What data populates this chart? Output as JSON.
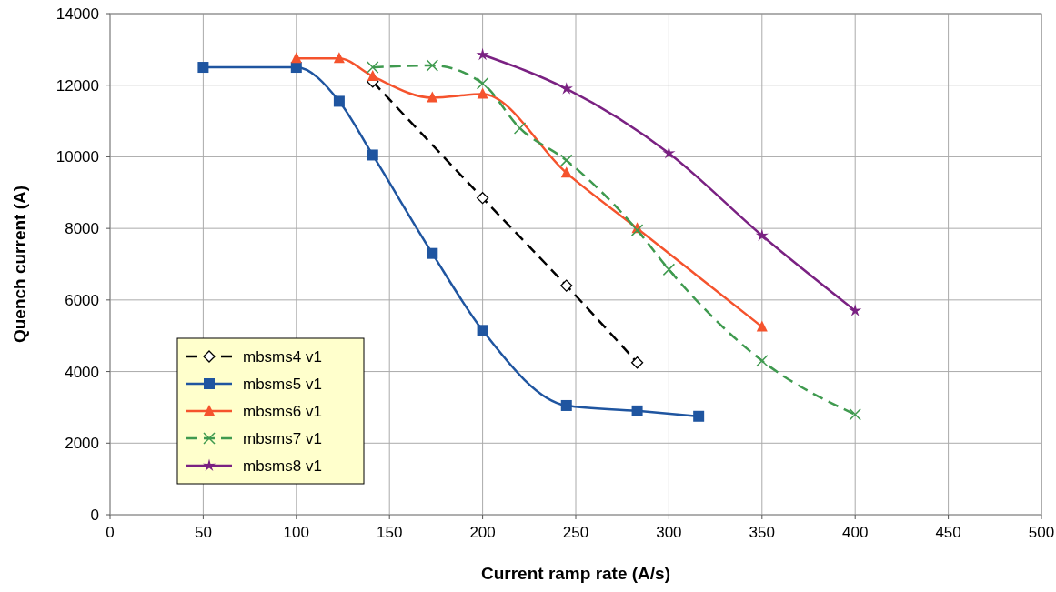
{
  "chart_data": {
    "type": "line",
    "xlabel": "Current ramp rate (A/s)",
    "ylabel": "Quench current (A)",
    "xlim": [
      0,
      500
    ],
    "xticks": [
      0,
      50,
      100,
      150,
      200,
      250,
      300,
      350,
      400,
      450,
      500
    ],
    "ylim": [
      0,
      14000
    ],
    "yticks": [
      0,
      2000,
      4000,
      6000,
      8000,
      10000,
      12000,
      14000
    ],
    "grid": true,
    "legend": "bottom left",
    "series": [
      {
        "name": "mbsms4 v1",
        "color": "#000000",
        "marker": "diamond",
        "line_style": "dashed",
        "x": [
          141,
          200,
          245,
          283
        ],
        "values": [
          12100,
          8850,
          6400,
          4250
        ]
      },
      {
        "name": "mbsms5 v1",
        "color": "#1f55a0",
        "marker": "square",
        "line_style": "solid",
        "x": [
          50,
          100,
          123,
          141,
          173,
          200,
          245,
          283,
          316
        ],
        "values": [
          12500,
          12500,
          11550,
          10050,
          7300,
          5150,
          3050,
          2900,
          2750
        ]
      },
      {
        "name": "mbsms6 v1",
        "color": "#f5532d",
        "marker": "triangle",
        "line_style": "solid",
        "x": [
          100,
          123,
          141,
          173,
          200,
          245,
          283,
          350
        ],
        "values": [
          12750,
          12750,
          12250,
          11650,
          11750,
          9550,
          8000,
          5250
        ]
      },
      {
        "name": "mbsms7 v1",
        "color": "#3f9a4f",
        "marker": "cross",
        "line_style": "dashed",
        "x": [
          141,
          173,
          200,
          220,
          245,
          283,
          300,
          350,
          400
        ],
        "values": [
          12500,
          12550,
          12050,
          10800,
          9900,
          7950,
          6850,
          4300,
          2800
        ]
      },
      {
        "name": "mbsms8 v1",
        "color": "#7a2182",
        "marker": "star",
        "line_style": "solid",
        "x": [
          200,
          245,
          300,
          350,
          400
        ],
        "values": [
          12850,
          11900,
          10100,
          7800,
          5700
        ]
      }
    ]
  }
}
